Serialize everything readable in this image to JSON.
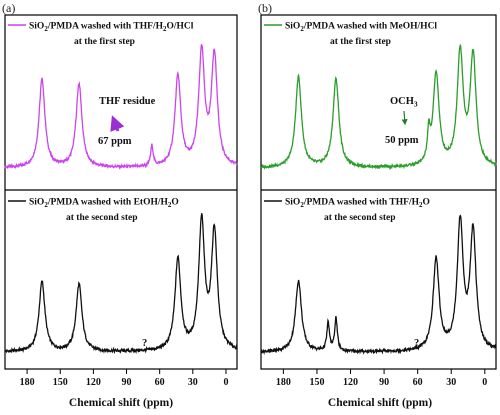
{
  "chart_data": [
    {
      "type": "line",
      "panel_label": "(a)",
      "xlabel": "Chemical shift (ppm)",
      "xlim": [
        200,
        -10
      ],
      "x_reversed": true,
      "ticks": [
        "180",
        "150",
        "120",
        "90",
        "60",
        "30",
        "0"
      ],
      "tick_values": [
        180,
        150,
        120,
        90,
        60,
        30,
        0
      ],
      "series": [
        {
          "name": "SiO2/PMDA washed with THF/H2O/HCl",
          "name_parts": {
            "a": "SiO",
            "sub1": "2",
            "b": "/PMDA washed with THF/H",
            "sub2": "2",
            "c": "O/HCl"
          },
          "name_line2": "at the first step",
          "color": "#cc44ee",
          "peaks": [
            {
              "ppm": 166.5,
              "height": 0.78
            },
            {
              "ppm": 133.0,
              "height": 0.74
            },
            {
              "ppm": 67.0,
              "height": 0.18
            },
            {
              "ppm": 43.5,
              "height": 0.8
            },
            {
              "ppm": 22.0,
              "height": 1.0
            },
            {
              "ppm": 10.5,
              "height": 0.98
            }
          ]
        },
        {
          "name": "SiO2/PMDA washed with EtOH/H2O",
          "name_parts": {
            "a": "SiO",
            "sub1": "2",
            "b": "/PMDA washed with EtOH/H",
            "sub2": "2",
            "c": "O"
          },
          "name_line2": "at the second step",
          "color": "#111111",
          "peaks": [
            {
              "ppm": 166.5,
              "height": 0.55
            },
            {
              "ppm": 133.0,
              "height": 0.53
            },
            {
              "ppm": 43.5,
              "height": 0.72
            },
            {
              "ppm": 22.0,
              "height": 1.0
            },
            {
              "ppm": 10.5,
              "height": 0.93
            }
          ]
        }
      ],
      "annotations": [
        {
          "label": "THF residue",
          "ppm_label": "67 ppm"
        },
        {
          "label": "?"
        }
      ]
    },
    {
      "type": "line",
      "panel_label": "(b)",
      "xlabel": "Chemical shift (ppm)",
      "xlim": [
        200,
        -10
      ],
      "x_reversed": true,
      "ticks": [
        "180",
        "150",
        "120",
        "90",
        "60",
        "30",
        "0"
      ],
      "tick_values": [
        180,
        150,
        120,
        90,
        60,
        30,
        0
      ],
      "series": [
        {
          "name": "SiO2/PMDA washed with MeOH/HCl",
          "name_parts": {
            "a": "SiO",
            "sub1": "2",
            "b": "/PMDA washed with MeOH/HCl"
          },
          "name_line2": "at the first step",
          "color": "#2a9d2a",
          "peaks": [
            {
              "ppm": 166.5,
              "height": 0.8
            },
            {
              "ppm": 133.0,
              "height": 0.78
            },
            {
              "ppm": 50.0,
              "height": 0.25
            },
            {
              "ppm": 43.5,
              "height": 0.82
            },
            {
              "ppm": 22.0,
              "height": 1.0
            },
            {
              "ppm": 10.5,
              "height": 0.97
            }
          ]
        },
        {
          "name": "SiO2/PMDA washed with THF/H2O",
          "name_parts": {
            "a": "SiO",
            "sub1": "2",
            "b": "/PMDA washed with THF/H",
            "sub2": "2",
            "c": "O"
          },
          "name_line2": "at the second step",
          "color": "#111111",
          "peaks": [
            {
              "ppm": 166.5,
              "height": 0.56
            },
            {
              "ppm": 140.0,
              "height": 0.22
            },
            {
              "ppm": 133.0,
              "height": 0.26
            },
            {
              "ppm": 43.5,
              "height": 0.72
            },
            {
              "ppm": 22.0,
              "height": 1.0
            },
            {
              "ppm": 10.5,
              "height": 0.93
            }
          ]
        }
      ],
      "annotations": [
        {
          "label": "OCH",
          "label_sub": "3",
          "ppm_label": "50 ppm"
        },
        {
          "label": "?"
        }
      ]
    }
  ]
}
